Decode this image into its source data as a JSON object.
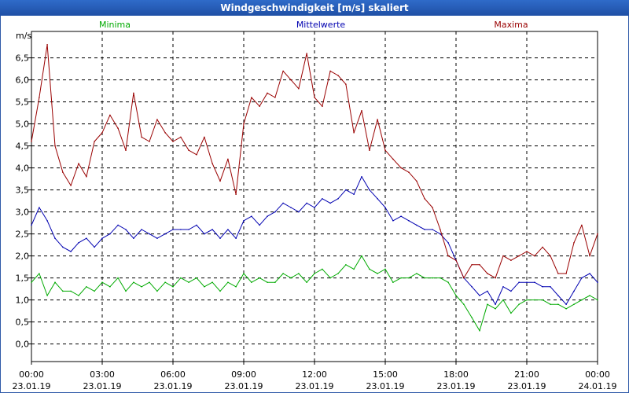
{
  "window": {
    "title": "Windgeschwindigkeit [m/s] skaliert"
  },
  "chart_data": {
    "type": "line",
    "title": "Windgeschwindigkeit [m/s] skaliert",
    "ylabel": "m/s",
    "xlabel": "",
    "ylim": [
      -0.4,
      7.1
    ],
    "xlim": [
      0,
      24
    ],
    "grid": true,
    "yticks": [
      0,
      0.5,
      1,
      1.5,
      2,
      2.5,
      3,
      3.5,
      4,
      4.5,
      5,
      5.5,
      6,
      6.5
    ],
    "ytick_labels": [
      "0,0",
      "0,5",
      "1,0",
      "1,5",
      "2,0",
      "2,5",
      "3,0",
      "3,5",
      "4,0",
      "4,5",
      "5,0",
      "5,5",
      "6,0",
      "6,5"
    ],
    "xticks": [
      0,
      3,
      6,
      9,
      12,
      15,
      18,
      21,
      24
    ],
    "xtick_times": [
      "00:00",
      "03:00",
      "06:00",
      "09:00",
      "12:00",
      "15:00",
      "18:00",
      "21:00",
      "00:00"
    ],
    "xtick_dates": [
      "23.01.19",
      "23.01.19",
      "23.01.19",
      "23.01.19",
      "23.01.19",
      "23.01.19",
      "23.01.19",
      "23.01.19",
      "24.01.19"
    ],
    "legend_position": "top",
    "series": [
      {
        "name": "Minima",
        "color": "#00aa00",
        "x": [
          0,
          0.33,
          0.67,
          1,
          1.33,
          1.67,
          2,
          2.33,
          2.67,
          3,
          3.33,
          3.67,
          4,
          4.33,
          4.67,
          5,
          5.33,
          5.67,
          6,
          6.33,
          6.67,
          7,
          7.33,
          7.67,
          8,
          8.33,
          8.67,
          9,
          9.33,
          9.67,
          10,
          10.33,
          10.67,
          11,
          11.33,
          11.67,
          12,
          12.33,
          12.67,
          13,
          13.33,
          13.67,
          14,
          14.33,
          14.67,
          15,
          15.33,
          15.67,
          16,
          16.33,
          16.67,
          17,
          17.33,
          17.67,
          18,
          18.33,
          18.67,
          19,
          19.33,
          19.67,
          20,
          20.33,
          20.67,
          21,
          21.33,
          21.67,
          22,
          22.33,
          22.67,
          23,
          23.33,
          23.67,
          24
        ],
        "values": [
          1.4,
          1.6,
          1.1,
          1.4,
          1.2,
          1.2,
          1.1,
          1.3,
          1.2,
          1.4,
          1.3,
          1.5,
          1.2,
          1.4,
          1.3,
          1.4,
          1.2,
          1.4,
          1.3,
          1.5,
          1.4,
          1.5,
          1.3,
          1.4,
          1.2,
          1.4,
          1.3,
          1.6,
          1.4,
          1.5,
          1.4,
          1.4,
          1.6,
          1.5,
          1.6,
          1.4,
          1.6,
          1.7,
          1.5,
          1.6,
          1.8,
          1.7,
          2.0,
          1.7,
          1.6,
          1.7,
          1.4,
          1.5,
          1.5,
          1.6,
          1.5,
          1.5,
          1.5,
          1.4,
          1.1,
          0.9,
          0.6,
          0.3,
          0.9,
          0.8,
          1.0,
          0.7,
          0.9,
          1.0,
          1.0,
          1.0,
          0.9,
          0.9,
          0.8,
          0.9,
          1.0,
          1.1,
          1.0
        ],
        "label": "Minima"
      },
      {
        "name": "Mittelwerte",
        "color": "#0000b0",
        "x": [
          0,
          0.33,
          0.67,
          1,
          1.33,
          1.67,
          2,
          2.33,
          2.67,
          3,
          3.33,
          3.67,
          4,
          4.33,
          4.67,
          5,
          5.33,
          5.67,
          6,
          6.33,
          6.67,
          7,
          7.33,
          7.67,
          8,
          8.33,
          8.67,
          9,
          9.33,
          9.67,
          10,
          10.33,
          10.67,
          11,
          11.33,
          11.67,
          12,
          12.33,
          12.67,
          13,
          13.33,
          13.67,
          14,
          14.33,
          14.67,
          15,
          15.33,
          15.67,
          16,
          16.33,
          16.67,
          17,
          17.33,
          17.67,
          18,
          18.33,
          18.67,
          19,
          19.33,
          19.67,
          20,
          20.33,
          20.67,
          21,
          21.33,
          21.67,
          22,
          22.33,
          22.67,
          23,
          23.33,
          23.67,
          24
        ],
        "values": [
          2.7,
          3.1,
          2.8,
          2.4,
          2.2,
          2.1,
          2.3,
          2.4,
          2.2,
          2.4,
          2.5,
          2.7,
          2.6,
          2.4,
          2.6,
          2.5,
          2.4,
          2.5,
          2.6,
          2.6,
          2.6,
          2.7,
          2.5,
          2.6,
          2.4,
          2.6,
          2.4,
          2.8,
          2.9,
          2.7,
          2.9,
          3.0,
          3.2,
          3.1,
          3.0,
          3.2,
          3.1,
          3.3,
          3.2,
          3.3,
          3.5,
          3.4,
          3.8,
          3.5,
          3.3,
          3.1,
          2.8,
          2.9,
          2.8,
          2.7,
          2.6,
          2.6,
          2.5,
          2.3,
          1.9,
          1.5,
          1.3,
          1.1,
          1.2,
          0.9,
          1.3,
          1.2,
          1.4,
          1.4,
          1.4,
          1.3,
          1.3,
          1.1,
          0.9,
          1.2,
          1.5,
          1.6,
          1.4
        ],
        "label": "Mittelwerte"
      },
      {
        "name": "Maxima",
        "color": "#990000",
        "x": [
          0,
          0.33,
          0.67,
          1,
          1.33,
          1.67,
          2,
          2.33,
          2.67,
          3,
          3.33,
          3.67,
          4,
          4.33,
          4.67,
          5,
          5.33,
          5.67,
          6,
          6.33,
          6.67,
          7,
          7.33,
          7.67,
          8,
          8.33,
          8.67,
          9,
          9.33,
          9.67,
          10,
          10.33,
          10.67,
          11,
          11.33,
          11.67,
          12,
          12.33,
          12.67,
          13,
          13.33,
          13.67,
          14,
          14.33,
          14.67,
          15,
          15.33,
          15.67,
          16,
          16.33,
          16.67,
          17,
          17.33,
          17.67,
          18,
          18.33,
          18.67,
          19,
          19.33,
          19.67,
          20,
          20.33,
          20.67,
          21,
          21.33,
          21.67,
          22,
          22.33,
          22.67,
          23,
          23.33,
          23.67,
          24
        ],
        "values": [
          4.6,
          5.6,
          6.8,
          4.5,
          3.9,
          3.6,
          4.1,
          3.8,
          4.6,
          4.8,
          5.2,
          4.9,
          4.4,
          5.7,
          4.7,
          4.6,
          5.1,
          4.8,
          4.6,
          4.7,
          4.4,
          4.3,
          4.7,
          4.1,
          3.7,
          4.2,
          3.4,
          5.0,
          5.6,
          5.4,
          5.7,
          5.6,
          6.2,
          6.0,
          5.8,
          6.6,
          5.6,
          5.4,
          6.2,
          6.1,
          5.9,
          4.8,
          5.3,
          4.4,
          5.1,
          4.4,
          4.2,
          4.0,
          3.9,
          3.7,
          3.3,
          3.1,
          2.6,
          2.0,
          1.9,
          1.5,
          1.8,
          1.8,
          1.6,
          1.5,
          2.0,
          1.9,
          2.0,
          2.1,
          2.0,
          2.2,
          2.0,
          1.6,
          1.6,
          2.3,
          2.7,
          2.0,
          2.5
        ],
        "label": "Maxima"
      }
    ]
  }
}
